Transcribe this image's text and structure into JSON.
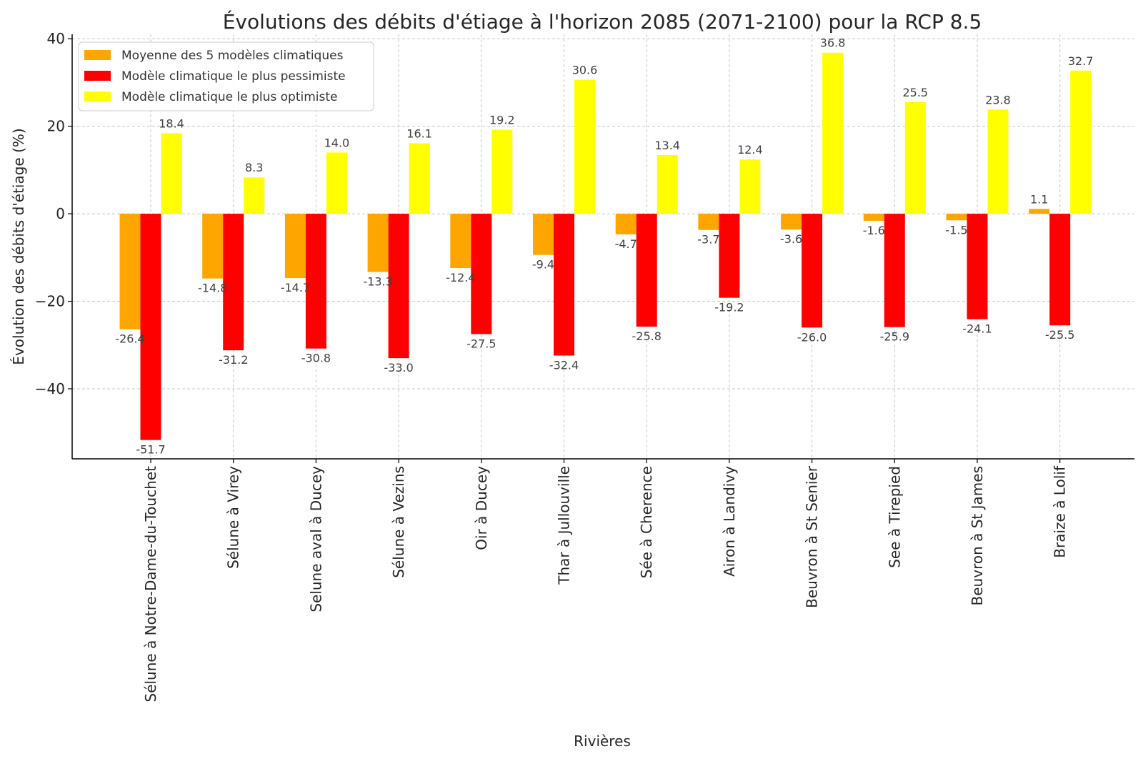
{
  "chart_data": {
    "type": "bar",
    "title": "Évolutions des débits d'étiage à l'horizon 2085 (2071-2100) pour la RCP 8.5",
    "xlabel": "Rivières",
    "ylabel": "Évolution des débits d'étiage (%)",
    "ylim": [
      -56,
      41
    ],
    "yticks": [
      40,
      20,
      0,
      -20,
      -40
    ],
    "grid": true,
    "legend_position": "top-left",
    "categories": [
      "Sélune à Notre-Dame-du-Touchet",
      "Sélune à Virey",
      "Selune aval à Ducey",
      "Sélune à Vezins",
      "Oir à Ducey",
      "Thar à Jullouville",
      "Sée à Cherence",
      "Airon à Landivy",
      "Beuvron à St Senier",
      "See à Tirepied",
      "Beuvron à St James",
      "Braize à Lolif"
    ],
    "series": [
      {
        "name": "Moyenne des 5 modèles climatiques",
        "color": "#FFA500",
        "values": [
          -26.4,
          -14.8,
          -14.7,
          -13.3,
          -12.4,
          -9.4,
          -4.7,
          -3.7,
          -3.6,
          -1.6,
          -1.5,
          1.1
        ]
      },
      {
        "name": "Modèle climatique le plus pessimiste",
        "color": "#FF0000",
        "values": [
          -51.7,
          -31.2,
          -30.8,
          -33.0,
          -27.5,
          -32.4,
          -25.8,
          -19.2,
          -26.0,
          -25.9,
          -24.1,
          -25.5
        ]
      },
      {
        "name": "Modèle climatique le plus optimiste",
        "color": "#FFFF00",
        "values": [
          18.4,
          8.3,
          14.0,
          16.1,
          19.2,
          30.6,
          13.4,
          12.4,
          36.8,
          25.5,
          23.8,
          32.7
        ]
      }
    ]
  }
}
